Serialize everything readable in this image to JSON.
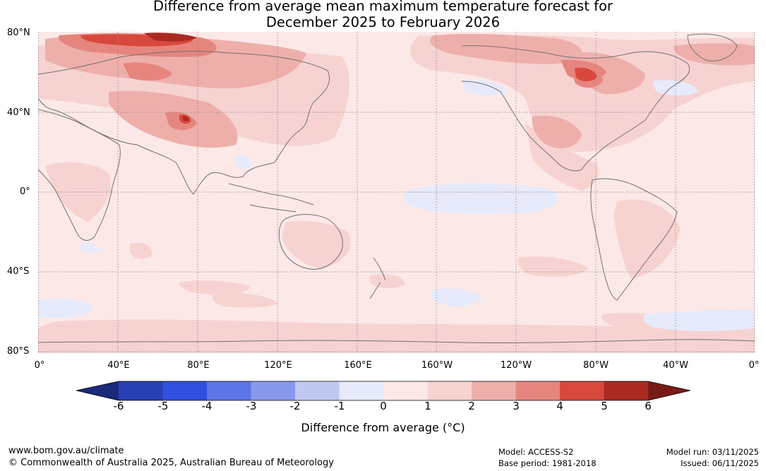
{
  "title": {
    "line1": "Difference from average mean maximum temperature forecast for",
    "line2": "December 2025 to February 2026"
  },
  "axes": {
    "lat_labels": [
      "80°N",
      "40°N",
      "0°",
      "40°S",
      "80°S"
    ],
    "lon_labels": [
      "0°",
      "40°E",
      "80°E",
      "120°E",
      "160°E",
      "160°W",
      "120°W",
      "80°W",
      "40°W",
      "0°"
    ]
  },
  "colors": {
    "m6": "#1b2a7a",
    "m5": "#2840b4",
    "m4": "#2f4fe0",
    "m3": "#5c74e6",
    "m2": "#8898ec",
    "m1": "#c0c8f2",
    "m0": "#e6eafb",
    "p0": "#fce9e7",
    "p1": "#f6d3d1",
    "p2": "#eeafab",
    "p3": "#e6857e",
    "p4": "#d8483c",
    "p5": "#aa2a22",
    "p6": "#7a1a16",
    "coast": "#707070",
    "grid": "#8a8a8a"
  },
  "colorbar": {
    "ticks": [
      "-6",
      "-5",
      "-4",
      "-3",
      "-2",
      "-1",
      "0",
      "1",
      "2",
      "3",
      "4",
      "5",
      "6"
    ],
    "label": "Difference from average (°C)"
  },
  "footer": {
    "website": "www.bom.gov.au/climate",
    "copyright": "© Commonwealth of Australia 2025, Australian Bureau of Meteorology",
    "model": "Model: ACCESS-S2",
    "base_period": "Base period: 1981-2018",
    "model_run": "Model run: 03/11/2025",
    "issued": "Issued: 06/11/2025"
  }
}
